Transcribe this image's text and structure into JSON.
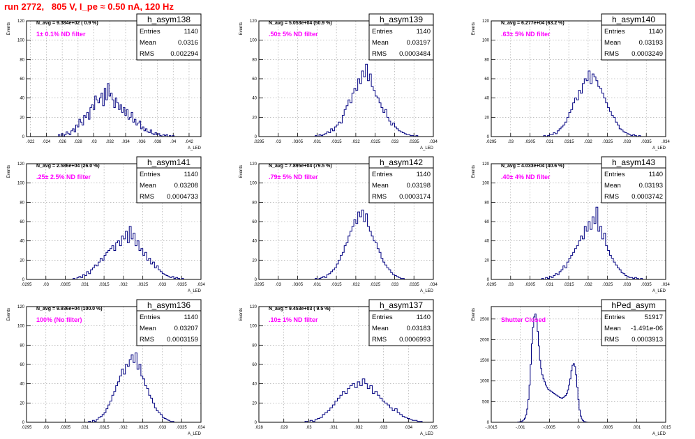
{
  "page_title": "run 2772,   805 V, I_pe ≈ 0.50 nA, 120 Hz",
  "chart_data": [
    {
      "type": "bar",
      "histogram": "h_asym138",
      "annotation": "N_avg = 9.384e+02 ( 0.9 %)",
      "filter_label": "1± 0.1% ND filter",
      "ylabel": "Events",
      "xlabel": "A_LED",
      "xlim": [
        0.0215,
        0.0435
      ],
      "ylim": [
        0,
        120
      ],
      "xticks": [
        0.022,
        0.024,
        0.026,
        0.028,
        0.03,
        0.032,
        0.034,
        0.036,
        0.038,
        0.04,
        0.042
      ],
      "yticks": [
        0,
        20,
        40,
        60,
        80,
        100,
        120
      ],
      "stats": {
        "entries": "1140",
        "mean": "0.0316",
        "rms": "0.002294"
      },
      "bins": {
        "start": 0.0255,
        "width": 0.0002,
        "counts": [
          2,
          0,
          3,
          0,
          2,
          5,
          3,
          2,
          6,
          8,
          5,
          12,
          10,
          18,
          15,
          12,
          22,
          20,
          25,
          18,
          30,
          33,
          28,
          42,
          38,
          35,
          40,
          45,
          32,
          50,
          38,
          55,
          42,
          45,
          38,
          30,
          40,
          35,
          28,
          33,
          25,
          30,
          22,
          28,
          18,
          20,
          25,
          15,
          18,
          12,
          14,
          16,
          8,
          10,
          6,
          8,
          5,
          4,
          7,
          3,
          2,
          4,
          2,
          3,
          1,
          0,
          2,
          1,
          2,
          0,
          1,
          0,
          1,
          0
        ]
      }
    },
    {
      "type": "bar",
      "histogram": "h_asym139",
      "annotation": "N_avg = 5.053e+04 (50.9 %)",
      "filter_label": ".50± 5% ND filter",
      "ylabel": "Events",
      "xlabel": "A_LED",
      "xlim": [
        0.0295,
        0.034
      ],
      "ylim": [
        0,
        120
      ],
      "xticks": [
        0.0295,
        0.03,
        0.0305,
        0.031,
        0.0315,
        0.032,
        0.0325,
        0.033,
        0.0335,
        0.034
      ],
      "yticks": [
        0,
        20,
        40,
        60,
        80,
        100,
        120
      ],
      "stats": {
        "entries": "1140",
        "mean": "0.03197",
        "rms": "0.0003484"
      },
      "bins": {
        "start": 0.03095,
        "width": 5e-05,
        "counts": [
          1,
          0,
          2,
          1,
          2,
          3,
          5,
          4,
          8,
          6,
          10,
          12,
          15,
          14,
          22,
          28,
          32,
          38,
          35,
          45,
          50,
          48,
          60,
          55,
          68,
          62,
          75,
          58,
          65,
          52,
          48,
          42,
          40,
          35,
          30,
          25,
          28,
          20,
          16,
          12,
          14,
          10,
          8,
          6,
          5,
          4,
          3,
          2,
          2,
          1,
          1,
          0,
          1
        ]
      }
    },
    {
      "type": "bar",
      "histogram": "h_asym140",
      "annotation": "N_avg = 6.277e+04 (63.2 %)",
      "filter_label": ".63± 5% ND filter",
      "ylabel": "Events",
      "xlabel": "A_LED",
      "xlim": [
        0.0295,
        0.034
      ],
      "ylim": [
        0,
        120
      ],
      "xticks": [
        0.0295,
        0.03,
        0.0305,
        0.031,
        0.0315,
        0.032,
        0.0325,
        0.033,
        0.0335,
        0.034
      ],
      "yticks": [
        0,
        20,
        40,
        60,
        80,
        100,
        120
      ],
      "stats": {
        "entries": "1140",
        "mean": "0.03193",
        "rms": "0.0003249"
      },
      "bins": {
        "start": 0.03085,
        "width": 5e-05,
        "counts": [
          1,
          0,
          1,
          2,
          2,
          4,
          3,
          6,
          8,
          10,
          12,
          15,
          20,
          25,
          28,
          35,
          40,
          38,
          48,
          45,
          55,
          60,
          58,
          68,
          55,
          65,
          62,
          58,
          52,
          50,
          45,
          40,
          35,
          30,
          26,
          22,
          20,
          15,
          12,
          8,
          7,
          5,
          4,
          3,
          2,
          1,
          2,
          1,
          0,
          1
        ]
      }
    },
    {
      "type": "bar",
      "histogram": "h_asym141",
      "annotation": "N_avg = 2.586e+04 (26.0 %)",
      "filter_label": ".25± 2.5% ND filter",
      "ylabel": "Events",
      "xlabel": "A_LED",
      "xlim": [
        0.0295,
        0.034
      ],
      "ylim": [
        0,
        120
      ],
      "xticks": [
        0.0295,
        0.03,
        0.0305,
        0.031,
        0.0315,
        0.032,
        0.0325,
        0.033,
        0.0335,
        0.034
      ],
      "yticks": [
        0,
        20,
        40,
        60,
        80,
        100,
        120
      ],
      "stats": {
        "entries": "1140",
        "mean": "0.03208",
        "rms": "0.0004733"
      },
      "bins": {
        "start": 0.0307,
        "width": 5e-05,
        "counts": [
          1,
          0,
          2,
          3,
          2,
          5,
          4,
          8,
          6,
          10,
          12,
          15,
          14,
          18,
          22,
          20,
          25,
          28,
          30,
          32,
          35,
          30,
          38,
          40,
          35,
          45,
          42,
          50,
          38,
          55,
          42,
          48,
          35,
          40,
          30,
          32,
          25,
          28,
          20,
          22,
          16,
          18,
          12,
          14,
          10,
          8,
          6,
          5,
          4,
          3,
          2,
          3,
          1,
          2,
          1,
          0,
          1
        ]
      }
    },
    {
      "type": "bar",
      "histogram": "h_asym142",
      "annotation": "N_avg = 7.895e+04 (79.5 %)",
      "filter_label": ".79± 5% ND filter",
      "ylabel": "Events",
      "xlabel": "A_LED",
      "xlim": [
        0.0295,
        0.034
      ],
      "ylim": [
        0,
        120
      ],
      "xticks": [
        0.0295,
        0.03,
        0.0305,
        0.031,
        0.0315,
        0.032,
        0.0325,
        0.033,
        0.0335,
        0.034
      ],
      "yticks": [
        0,
        20,
        40,
        60,
        80,
        100,
        120
      ],
      "stats": {
        "entries": "1140",
        "mean": "0.03198",
        "rms": "0.0003174"
      },
      "bins": {
        "start": 0.03095,
        "width": 5e-05,
        "counts": [
          1,
          0,
          1,
          2,
          3,
          2,
          5,
          6,
          8,
          10,
          12,
          16,
          20,
          25,
          28,
          35,
          38,
          45,
          50,
          55,
          62,
          58,
          70,
          65,
          72,
          60,
          68,
          55,
          50,
          45,
          40,
          38,
          32,
          28,
          22,
          18,
          15,
          12,
          10,
          7,
          5,
          4,
          3,
          2,
          1,
          1,
          0
        ]
      }
    },
    {
      "type": "bar",
      "histogram": "h_asym143",
      "annotation": "N_avg = 4.033e+04 (40.6 %)",
      "filter_label": ".40± 4% ND filter",
      "ylabel": "Events",
      "xlabel": "A_LED",
      "xlim": [
        0.0295,
        0.034
      ],
      "ylim": [
        0,
        120
      ],
      "xticks": [
        0.0295,
        0.03,
        0.0305,
        0.031,
        0.0315,
        0.032,
        0.0325,
        0.033,
        0.0335,
        0.034
      ],
      "yticks": [
        0,
        20,
        40,
        60,
        80,
        100,
        120
      ],
      "stats": {
        "entries": "1140",
        "mean": "0.03193",
        "rms": "0.0003742"
      },
      "bins": {
        "start": 0.0308,
        "width": 5e-05,
        "counts": [
          1,
          0,
          2,
          1,
          3,
          2,
          4,
          6,
          5,
          8,
          10,
          14,
          12,
          18,
          22,
          25,
          28,
          32,
          35,
          40,
          45,
          42,
          55,
          50,
          60,
          52,
          65,
          58,
          75,
          50,
          55,
          42,
          48,
          35,
          30,
          25,
          22,
          18,
          15,
          12,
          10,
          7,
          6,
          4,
          3,
          2,
          2,
          1,
          2,
          1,
          0,
          1
        ]
      }
    },
    {
      "type": "bar",
      "histogram": "h_asym136",
      "annotation": "N_avg = 9.936e+04 (100.0 %)",
      "filter_label": "100% (No filter)",
      "ylabel": "Events",
      "xlabel": "A_LED",
      "xlim": [
        0.0295,
        0.034
      ],
      "ylim": [
        0,
        120
      ],
      "xticks": [
        0.0295,
        0.03,
        0.0305,
        0.031,
        0.0315,
        0.032,
        0.0325,
        0.033,
        0.0335,
        0.034
      ],
      "yticks": [
        0,
        20,
        40,
        60,
        80,
        100,
        120
      ],
      "stats": {
        "entries": "1140",
        "mean": "0.03207",
        "rms": "0.0003159"
      },
      "bins": {
        "start": 0.0311,
        "width": 5e-05,
        "counts": [
          1,
          0,
          2,
          1,
          3,
          5,
          6,
          8,
          10,
          14,
          18,
          22,
          28,
          32,
          38,
          42,
          48,
          55,
          50,
          60,
          58,
          65,
          70,
          62,
          72,
          55,
          60,
          48,
          45,
          38,
          35,
          28,
          25,
          20,
          15,
          12,
          10,
          8,
          5,
          4,
          3,
          2,
          1,
          1,
          0
        ]
      }
    },
    {
      "type": "bar",
      "histogram": "h_asym137",
      "annotation": "N_avg = 9.453e+03 ( 9.5 %)",
      "filter_label": ".10± 1% ND filter",
      "ylabel": "Events",
      "xlabel": "A_LED",
      "xlim": [
        0.028,
        0.035
      ],
      "ylim": [
        0,
        120
      ],
      "xticks": [
        0.028,
        0.029,
        0.03,
        0.031,
        0.032,
        0.033,
        0.034,
        0.035
      ],
      "yticks": [
        0,
        20,
        40,
        60,
        80,
        100,
        120
      ],
      "stats": {
        "entries": "1140",
        "mean": "0.03183",
        "rms": "0.0006993"
      },
      "bins": {
        "start": 0.02985,
        "width": 0.0001,
        "counts": [
          1,
          0,
          2,
          1,
          3,
          4,
          5,
          8,
          10,
          12,
          15,
          18,
          22,
          25,
          28,
          32,
          30,
          35,
          38,
          40,
          36,
          42,
          38,
          45,
          40,
          35,
          38,
          30,
          32,
          28,
          25,
          22,
          20,
          18,
          15,
          12,
          14,
          10,
          8,
          6,
          5,
          4,
          3,
          2,
          2,
          1,
          1,
          0
        ]
      }
    },
    {
      "type": "bar",
      "histogram": "hPed_asym",
      "annotation": "",
      "filter_label": "Shutter Closed",
      "ylabel": "Events",
      "xlabel": "A_LED",
      "xlim": [
        -0.0015,
        0.0015
      ],
      "ylim": [
        0,
        2800
      ],
      "xticks": [
        -0.0015,
        -0.001,
        -0.0005,
        0,
        0.0005,
        0.001,
        0.0015
      ],
      "yticks": [
        0,
        500,
        1000,
        1500,
        2000,
        2500
      ],
      "stats": {
        "entries": "51917",
        "mean": "-1.491e-06",
        "rms": "0.0003913"
      },
      "bins": {
        "start": -0.00105,
        "width": 2e-05,
        "counts": [
          5,
          8,
          12,
          20,
          35,
          60,
          100,
          180,
          320,
          550,
          900,
          1400,
          1900,
          2300,
          2550,
          2620,
          2500,
          2200,
          1850,
          1500,
          1300,
          1150,
          1050,
          980,
          900,
          850,
          800,
          780,
          760,
          740,
          720,
          700,
          680,
          660,
          640,
          620,
          600,
          590,
          580,
          600,
          620,
          650,
          700,
          780,
          900,
          1050,
          1250,
          1380,
          1420,
          1350,
          1150,
          850,
          550,
          300,
          150,
          80,
          40,
          20,
          10,
          5
        ]
      }
    }
  ]
}
